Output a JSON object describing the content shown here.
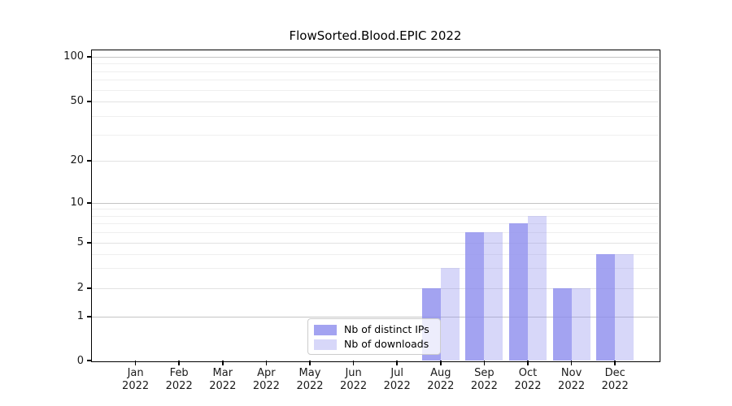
{
  "title": "FlowSorted.Blood.EPIC 2022",
  "legend": {
    "items": [
      {
        "label": "Nb of distinct IPs",
        "color": "rgba(140,140,238,0.8)"
      },
      {
        "label": "Nb of downloads",
        "color": "rgba(140,140,238,0.35)"
      }
    ]
  },
  "chart_data": {
    "type": "bar",
    "title": "FlowSorted.Blood.EPIC 2022",
    "categories": [
      {
        "month": "Jan",
        "year": "2022"
      },
      {
        "month": "Feb",
        "year": "2022"
      },
      {
        "month": "Mar",
        "year": "2022"
      },
      {
        "month": "Apr",
        "year": "2022"
      },
      {
        "month": "May",
        "year": "2022"
      },
      {
        "month": "Jun",
        "year": "2022"
      },
      {
        "month": "Jul",
        "year": "2022"
      },
      {
        "month": "Aug",
        "year": "2022"
      },
      {
        "month": "Sep",
        "year": "2022"
      },
      {
        "month": "Oct",
        "year": "2022"
      },
      {
        "month": "Nov",
        "year": "2022"
      },
      {
        "month": "Dec",
        "year": "2022"
      }
    ],
    "series": [
      {
        "name": "Nb of distinct IPs",
        "color": "rgba(140,140,238,0.8)",
        "values": [
          0,
          0,
          0,
          0,
          0,
          0,
          0,
          2,
          6,
          7,
          2,
          4
        ]
      },
      {
        "name": "Nb of downloads",
        "color": "rgba(140,140,238,0.35)",
        "values": [
          0,
          0,
          0,
          0,
          0,
          0,
          0,
          3,
          6,
          8,
          2,
          4
        ]
      }
    ],
    "yticks": [
      0,
      1,
      2,
      5,
      10,
      20,
      50,
      100
    ],
    "ylim": [
      0,
      105
    ],
    "xlabel": "",
    "ylabel": "",
    "scale": "log-like",
    "grid": true,
    "legend_position": "inside-bottom-center",
    "colors": {
      "grid_major": "#c4c4c4",
      "grid_mid": "#e2e2e2",
      "grid_minor": "#efefef",
      "spine": "#000000",
      "background": "#ffffff"
    }
  }
}
